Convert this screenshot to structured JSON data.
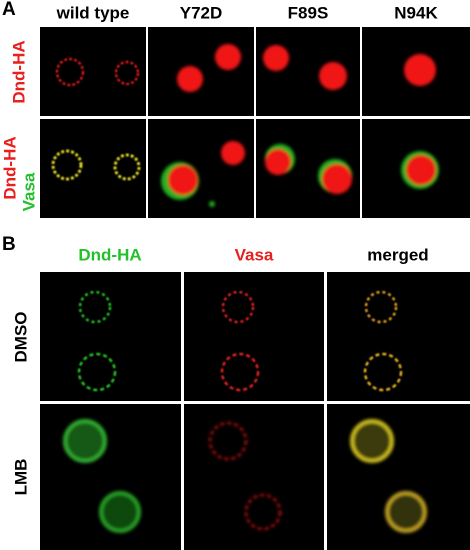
{
  "panel_a": {
    "label": "A",
    "columns": [
      "wild type",
      "Y72D",
      "F89S",
      "N94K"
    ],
    "rows": [
      {
        "labels": [
          "Dnd-HA"
        ]
      },
      {
        "labels": [
          "Dnd-HA",
          "Vasa"
        ]
      }
    ]
  },
  "panel_b": {
    "label": "B",
    "columns": [
      "Dnd-HA",
      "Vasa",
      "merged"
    ],
    "rows": [
      "DMSO",
      "LMB"
    ]
  }
}
